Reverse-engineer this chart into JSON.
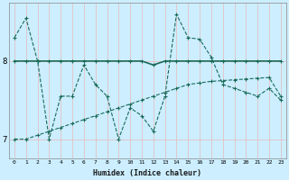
{
  "xlabel": "Humidex (Indice chaleur)",
  "background_color": "#cceeff",
  "line_color": "#1a6b5a",
  "grid_color": "#ffffff",
  "grid_minor_color": "#e8f8f8",
  "xlim": [
    -0.5,
    23.5
  ],
  "ylim": [
    6.75,
    8.75
  ],
  "yticks": [
    7,
    8
  ],
  "xticks": [
    0,
    1,
    2,
    3,
    4,
    5,
    6,
    7,
    8,
    9,
    10,
    11,
    12,
    13,
    14,
    15,
    16,
    17,
    18,
    19,
    20,
    21,
    22,
    23
  ],
  "line1_x": [
    0,
    1,
    2,
    3,
    4,
    5,
    6,
    7,
    8,
    9,
    10,
    11,
    12,
    13,
    14,
    15,
    16,
    17,
    18,
    19,
    20,
    21,
    22,
    23
  ],
  "line1_y": [
    8.3,
    8.55,
    8.0,
    7.0,
    7.55,
    7.55,
    7.95,
    7.7,
    7.55,
    7.0,
    7.4,
    7.3,
    7.1,
    7.55,
    8.6,
    8.3,
    8.28,
    8.05,
    7.7,
    7.65,
    7.6,
    7.55,
    7.65,
    7.5
  ],
  "line2_x": [
    0,
    1,
    2,
    3,
    4,
    5,
    6,
    7,
    8,
    9,
    10,
    11,
    12,
    13,
    14,
    15,
    16,
    17,
    18,
    19,
    20,
    21,
    22,
    23
  ],
  "line2_y": [
    8.0,
    8.0,
    8.0,
    8.0,
    8.0,
    8.0,
    8.0,
    8.0,
    8.0,
    8.0,
    8.0,
    8.0,
    7.95,
    8.0,
    8.0,
    8.0,
    8.0,
    8.0,
    8.0,
    8.0,
    8.0,
    8.0,
    8.0,
    8.0
  ],
  "line3_x": [
    0,
    1,
    2,
    3,
    4,
    5,
    6,
    7,
    8,
    9,
    10,
    11,
    12,
    13,
    14,
    15,
    16,
    17,
    18,
    19,
    20,
    21,
    22,
    23
  ],
  "line3_y": [
    7.0,
    7.0,
    7.05,
    7.1,
    7.15,
    7.2,
    7.25,
    7.3,
    7.35,
    7.4,
    7.45,
    7.5,
    7.55,
    7.6,
    7.65,
    7.7,
    7.72,
    7.74,
    7.75,
    7.76,
    7.77,
    7.78,
    7.79,
    7.55
  ]
}
